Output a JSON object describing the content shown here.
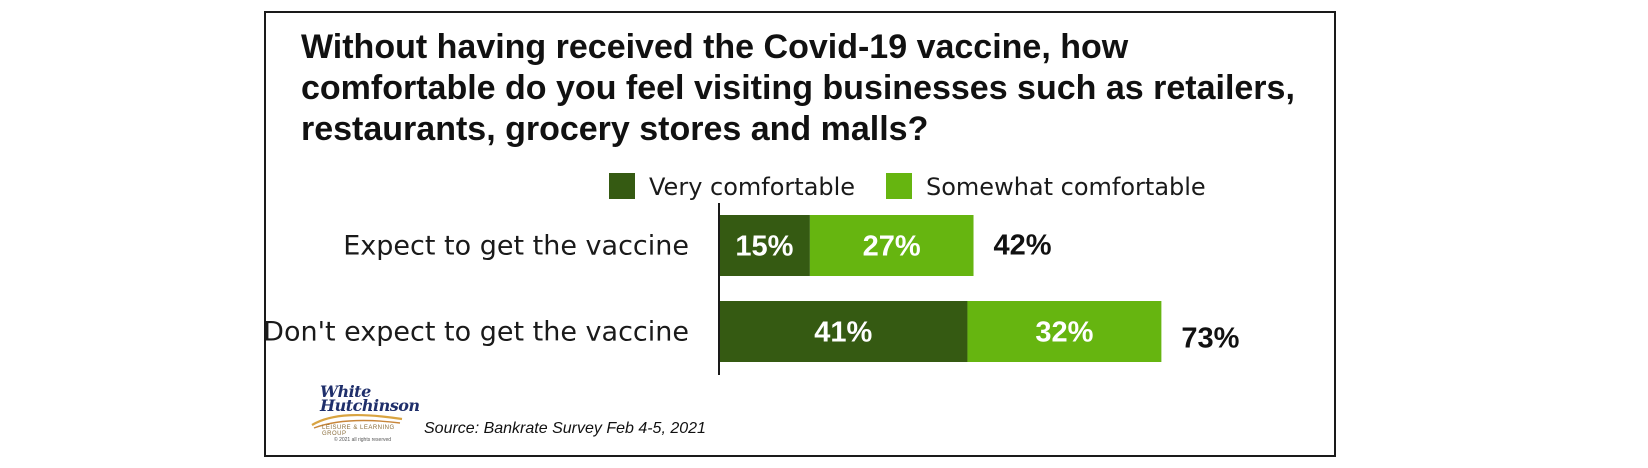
{
  "title": "Without having received the Covid-19 vaccine, how comfortable do you feel visiting businesses such as retailers, restaurants, grocery stores and malls?",
  "source": "Source: Bankrate Survey Feb 4-5, 2021",
  "logo": {
    "line1": "White",
    "line2": "Hutchinson",
    "tagline": "LEISURE & LEARNING GROUP",
    "copyright": "© 2021 all rights reserved"
  },
  "colors": {
    "very_comfortable": "#355a12",
    "somewhat_comfortable": "#66b510"
  },
  "chart_data": {
    "type": "bar",
    "orientation": "horizontal",
    "stacked": true,
    "categories": [
      "Expect to get the vaccine",
      "Don't expect to get the vaccine"
    ],
    "series": [
      {
        "name": "Very comfortable",
        "values": [
          15,
          41
        ],
        "labels": [
          "15%",
          "41%"
        ]
      },
      {
        "name": "Somewhat comfortable",
        "values": [
          27,
          32
        ],
        "labels": [
          "27%",
          "32%"
        ]
      }
    ],
    "totals": [
      42,
      73
    ],
    "total_labels": [
      "42%",
      "73%"
    ],
    "legend_position": "top",
    "grid": false,
    "xlim": [
      0,
      80
    ]
  }
}
